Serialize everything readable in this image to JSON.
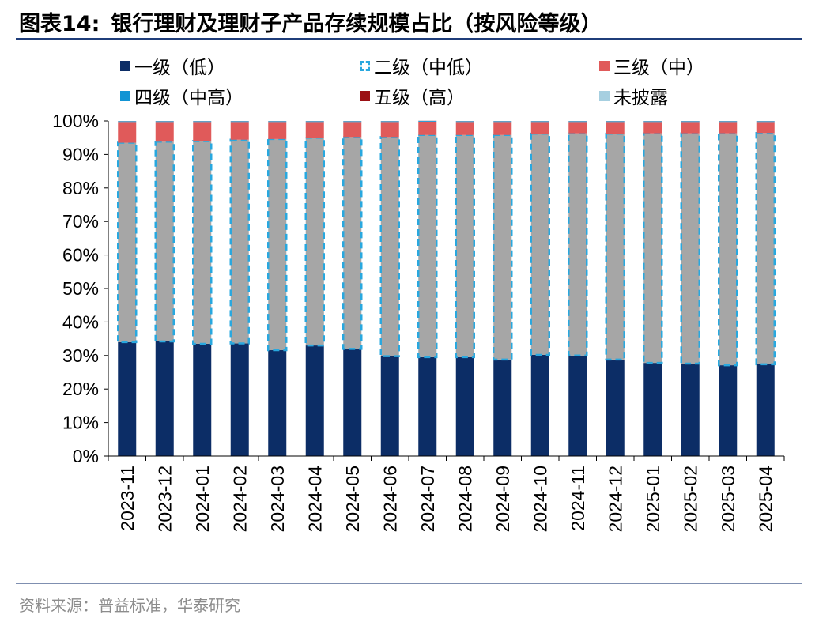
{
  "header": {
    "figure_label": "图表14:",
    "title": "银行理财及理财子产品存续规模占比（按风险等级）"
  },
  "source": "资料来源：普益标准，华泰研究",
  "colors": {
    "series": [
      "#0c2d66",
      "#29a8df",
      "#e05a5a",
      "#1294d4",
      "#9b1014",
      "#a6cfe0"
    ],
    "level2_fill": "#a6a6a6",
    "rules": "#1f3d7a"
  },
  "legend": [
    {
      "label": "一级（低）",
      "style": "solid"
    },
    {
      "label": "二级（中低）",
      "style": "dashed"
    },
    {
      "label": "三级（中）",
      "style": "solid"
    },
    {
      "label": "四级（中高）",
      "style": "solid"
    },
    {
      "label": "五级（高）",
      "style": "solid"
    },
    {
      "label": "未披露",
      "style": "solid"
    }
  ],
  "chart_data": {
    "type": "bar",
    "stacked": true,
    "title": "银行理财及理财子产品存续规模占比（按风险等级）",
    "xlabel": "",
    "ylabel": "",
    "ylim": [
      0,
      100
    ],
    "y_ticks": [
      "0%",
      "10%",
      "20%",
      "30%",
      "40%",
      "50%",
      "60%",
      "70%",
      "80%",
      "90%",
      "100%"
    ],
    "categories": [
      "2023-11",
      "2023-12",
      "2024-01",
      "2024-02",
      "2024-03",
      "2024-04",
      "2024-05",
      "2024-06",
      "2024-07",
      "2024-08",
      "2024-09",
      "2024-10",
      "2024-11",
      "2024-12",
      "2025-01",
      "2025-02",
      "2025-03",
      "2025-04"
    ],
    "series": [
      {
        "name": "一级（低）",
        "values": [
          34.0,
          34.2,
          33.5,
          33.6,
          31.6,
          33.0,
          32.0,
          29.8,
          29.5,
          29.5,
          28.8,
          30.2,
          30.0,
          28.8,
          27.8,
          27.6,
          27.1,
          27.4
        ]
      },
      {
        "name": "二级（中低）",
        "values": [
          59.5,
          59.6,
          60.5,
          60.8,
          63.0,
          62.0,
          63.2,
          65.4,
          66.3,
          66.3,
          67.0,
          66.0,
          66.3,
          67.4,
          68.5,
          68.7,
          69.2,
          69.0
        ]
      },
      {
        "name": "三级（中）",
        "values": [
          6.2,
          5.9,
          5.7,
          5.3,
          5.1,
          4.7,
          4.5,
          4.5,
          4.0,
          3.9,
          3.9,
          3.5,
          3.4,
          3.5,
          3.4,
          3.4,
          3.4,
          3.3
        ]
      },
      {
        "name": "四级（中高）",
        "values": [
          0.2,
          0.2,
          0.2,
          0.2,
          0.2,
          0.2,
          0.2,
          0.2,
          0.2,
          0.2,
          0.2,
          0.2,
          0.2,
          0.2,
          0.2,
          0.2,
          0.2,
          0.2
        ]
      },
      {
        "name": "五级（高）",
        "values": [
          0.05,
          0.05,
          0.05,
          0.05,
          0.05,
          0.05,
          0.05,
          0.05,
          0.05,
          0.05,
          0.05,
          0.05,
          0.05,
          0.05,
          0.05,
          0.05,
          0.05,
          0.05
        ]
      },
      {
        "name": "未披露",
        "values": [
          0.05,
          0.05,
          0.05,
          0.05,
          0.05,
          0.05,
          0.05,
          0.05,
          0.05,
          0.05,
          0.05,
          0.05,
          0.05,
          0.05,
          0.05,
          0.05,
          0.05,
          0.05
        ]
      }
    ],
    "legend_position": "top",
    "grid": false
  }
}
